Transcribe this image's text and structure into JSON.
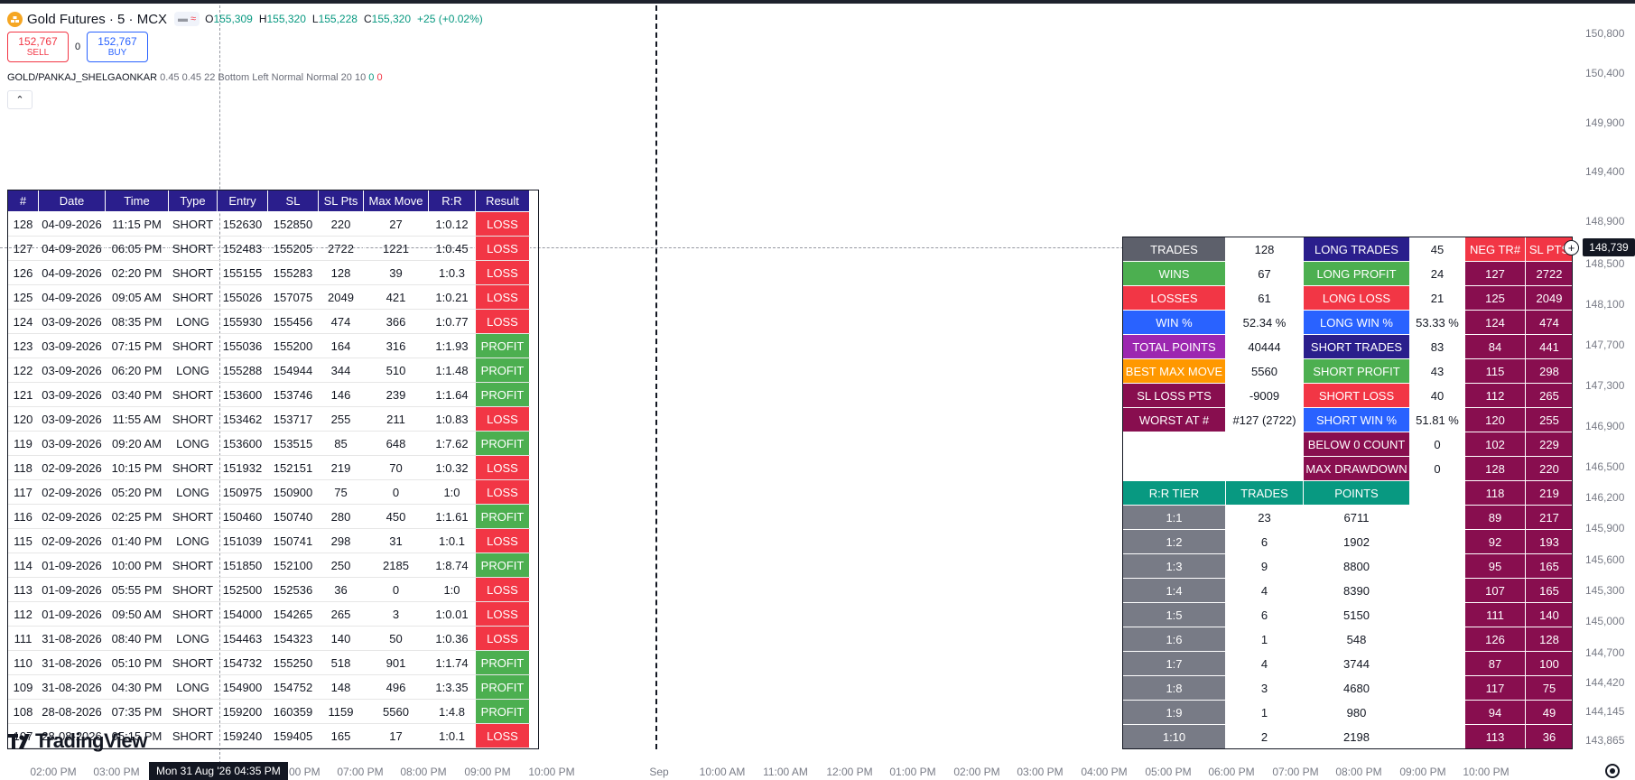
{
  "header": {
    "symbol_title": "Gold Futures · 5 · MCX",
    "badge_a": "▬",
    "badge_b": "≈",
    "ohlc": {
      "o_key": "O",
      "o": "155,309",
      "h_key": "H",
      "h": "155,320",
      "l_key": "L",
      "l": "155,228",
      "c_key": "C",
      "c": "155,320",
      "change": "+25 (+0.02%)"
    },
    "sell_price": "152,767",
    "sell_label": "SELL",
    "spread": "0",
    "buy_price": "152,767",
    "buy_label": "BUY",
    "indicator_name": "GOLD/PANKAJ_SHELGAONKAR",
    "indicator_args": "0.45 0.45 22 Bottom Left Normal Normal 20 10",
    "indicator_v0": "0",
    "indicator_v1": "0",
    "collapse_glyph": "⌃"
  },
  "price_axis": {
    "labels": [
      "150,800",
      "150,400",
      "149,900",
      "149,400",
      "148,900",
      "148,500",
      "148,100",
      "147,700",
      "147,300",
      "146,900",
      "146,500",
      "146,200",
      "145,900",
      "145,600",
      "145,300",
      "145,000",
      "144,700",
      "144,420",
      "144,145",
      "143,865"
    ],
    "current_price": "148,739"
  },
  "time_axis": {
    "labels": [
      "02:00 PM",
      "03:00 PM",
      "Mon 31 Aug '26",
      "06:00 PM",
      "07:00 PM",
      "08:00 PM",
      "09:00 PM",
      "10:00 PM",
      "Sep",
      "10:00 AM",
      "11:00 AM",
      "12:00 PM",
      "01:00 PM",
      "02:00 PM",
      "03:00 PM",
      "04:00 PM",
      "05:00 PM",
      "06:00 PM",
      "07:00 PM",
      "08:00 PM",
      "09:00 PM",
      "10:00 PM"
    ],
    "cursor_label": "Mon 31 Aug '26   04:35 PM"
  },
  "watermark": "TradingView",
  "trades": {
    "headers": [
      "#",
      "Date",
      "Time",
      "Type",
      "Entry",
      "SL",
      "SL Pts",
      "Max Move",
      "R:R",
      "Result"
    ],
    "rows": [
      [
        "128",
        "04-09-2026",
        "11:15 PM",
        "SHORT",
        "152630",
        "152850",
        "220",
        "27",
        "1:0.12",
        "LOSS"
      ],
      [
        "127",
        "04-09-2026",
        "06:05 PM",
        "SHORT",
        "152483",
        "155205",
        "2722",
        "1221",
        "1:0.45",
        "LOSS"
      ],
      [
        "126",
        "04-09-2026",
        "02:20 PM",
        "SHORT",
        "155155",
        "155283",
        "128",
        "39",
        "1:0.3",
        "LOSS"
      ],
      [
        "125",
        "04-09-2026",
        "09:05 AM",
        "SHORT",
        "155026",
        "157075",
        "2049",
        "421",
        "1:0.21",
        "LOSS"
      ],
      [
        "124",
        "03-09-2026",
        "08:35 PM",
        "LONG",
        "155930",
        "155456",
        "474",
        "366",
        "1:0.77",
        "LOSS"
      ],
      [
        "123",
        "03-09-2026",
        "07:15 PM",
        "SHORT",
        "155036",
        "155200",
        "164",
        "316",
        "1:1.93",
        "PROFIT"
      ],
      [
        "122",
        "03-09-2026",
        "06:20 PM",
        "LONG",
        "155288",
        "154944",
        "344",
        "510",
        "1:1.48",
        "PROFIT"
      ],
      [
        "121",
        "03-09-2026",
        "03:40 PM",
        "SHORT",
        "153600",
        "153746",
        "146",
        "239",
        "1:1.64",
        "PROFIT"
      ],
      [
        "120",
        "03-09-2026",
        "11:55 AM",
        "SHORT",
        "153462",
        "153717",
        "255",
        "211",
        "1:0.83",
        "LOSS"
      ],
      [
        "119",
        "03-09-2026",
        "09:20 AM",
        "LONG",
        "153600",
        "153515",
        "85",
        "648",
        "1:7.62",
        "PROFIT"
      ],
      [
        "118",
        "02-09-2026",
        "10:15 PM",
        "SHORT",
        "151932",
        "152151",
        "219",
        "70",
        "1:0.32",
        "LOSS"
      ],
      [
        "117",
        "02-09-2026",
        "05:20 PM",
        "LONG",
        "150975",
        "150900",
        "75",
        "0",
        "1:0",
        "LOSS"
      ],
      [
        "116",
        "02-09-2026",
        "02:25 PM",
        "SHORT",
        "150460",
        "150740",
        "280",
        "450",
        "1:1.61",
        "PROFIT"
      ],
      [
        "115",
        "02-09-2026",
        "01:40 PM",
        "LONG",
        "151039",
        "150741",
        "298",
        "31",
        "1:0.1",
        "LOSS"
      ],
      [
        "114",
        "01-09-2026",
        "10:00 PM",
        "SHORT",
        "151850",
        "152100",
        "250",
        "2185",
        "1:8.74",
        "PROFIT"
      ],
      [
        "113",
        "01-09-2026",
        "05:55 PM",
        "SHORT",
        "152500",
        "152536",
        "36",
        "0",
        "1:0",
        "LOSS"
      ],
      [
        "112",
        "01-09-2026",
        "09:50 AM",
        "SHORT",
        "154000",
        "154265",
        "265",
        "3",
        "1:0.01",
        "LOSS"
      ],
      [
        "111",
        "31-08-2026",
        "08:40 PM",
        "LONG",
        "154463",
        "154323",
        "140",
        "50",
        "1:0.36",
        "LOSS"
      ],
      [
        "110",
        "31-08-2026",
        "05:10 PM",
        "SHORT",
        "154732",
        "155250",
        "518",
        "901",
        "1:1.74",
        "PROFIT"
      ],
      [
        "109",
        "31-08-2026",
        "04:30 PM",
        "LONG",
        "154900",
        "154752",
        "148",
        "496",
        "1:3.35",
        "PROFIT"
      ],
      [
        "108",
        "28-08-2026",
        "07:35 PM",
        "SHORT",
        "159200",
        "160359",
        "1159",
        "5560",
        "1:4.8",
        "PROFIT"
      ],
      [
        "107",
        "28-08-2026",
        "05:15 PM",
        "SHORT",
        "159240",
        "159405",
        "165",
        "17",
        "1:0.1",
        "LOSS"
      ]
    ]
  },
  "stats": {
    "rows": [
      {
        "l1": "TRADES",
        "c1": "#5d606b",
        "v1": "128",
        "l2": "LONG TRADES",
        "c2": "#2a1e8c",
        "v2": "45",
        "neg": "NEG TR#",
        "sl": "SL PTS",
        "hdr": true
      },
      {
        "l1": "WINS",
        "c1": "#4caf50",
        "v1": "67",
        "l2": "LONG PROFIT",
        "c2": "#4caf50",
        "v2": "24",
        "neg": "127",
        "sl": "2722"
      },
      {
        "l1": "LOSSES",
        "c1": "#f23645",
        "v1": "61",
        "l2": "LONG LOSS",
        "c2": "#f23645",
        "v2": "21",
        "neg": "125",
        "sl": "2049"
      },
      {
        "l1": "WIN %",
        "c1": "#2962ff",
        "v1": "52.34 %",
        "l2": "LONG WIN %",
        "c2": "#2962ff",
        "v2": "53.33 %",
        "neg": "124",
        "sl": "474"
      },
      {
        "l1": "TOTAL POINTS",
        "c1": "#9c27b0",
        "v1": "40444",
        "l2": "SHORT TRADES",
        "c2": "#2a1e8c",
        "v2": "83",
        "neg": "84",
        "sl": "441"
      },
      {
        "l1": "BEST MAX MOVE",
        "c1": "#ff9800",
        "v1": "5560",
        "l2": "SHORT PROFIT",
        "c2": "#4caf50",
        "v2": "43",
        "neg": "115",
        "sl": "298"
      },
      {
        "l1": "SL LOSS PTS",
        "c1": "#880e4f",
        "v1": "-9009",
        "l2": "SHORT LOSS",
        "c2": "#f23645",
        "v2": "40",
        "neg": "112",
        "sl": "265"
      },
      {
        "l1": "WORST AT #",
        "c1": "#880e4f",
        "v1": "#127 (2722)",
        "l2": "SHORT WIN %",
        "c2": "#2962ff",
        "v2": "51.81 %",
        "neg": "120",
        "sl": "255"
      },
      {
        "l1": "",
        "c1": "",
        "v1": "",
        "l2": "BELOW 0 COUNT",
        "c2": "#880e4f",
        "v2": "0",
        "neg": "102",
        "sl": "229"
      },
      {
        "l1": "",
        "c1": "",
        "v1": "",
        "l2": "MAX DRAWDOWN",
        "c2": "#880e4f",
        "v2": "0",
        "neg": "128",
        "sl": "220"
      }
    ],
    "tier_headers": [
      "R:R TIER",
      "TRADES",
      "POINTS"
    ],
    "tier_rows": [
      {
        "tier": "1:1",
        "trades": "23",
        "points": "6711",
        "neg": "118",
        "sl": "219"
      },
      {
        "tier": "1:1",
        "trades": "23",
        "points": "6711",
        "neg": "89",
        "sl": "217"
      },
      {
        "tier": "1:2",
        "trades": "6",
        "points": "1902",
        "neg": "92",
        "sl": "193"
      },
      {
        "tier": "1:3",
        "trades": "9",
        "points": "8800",
        "neg": "95",
        "sl": "165"
      },
      {
        "tier": "1:4",
        "trades": "4",
        "points": "8390",
        "neg": "107",
        "sl": "165"
      },
      {
        "tier": "1:5",
        "trades": "6",
        "points": "5150",
        "neg": "111",
        "sl": "140"
      },
      {
        "tier": "1:6",
        "trades": "1",
        "points": "548",
        "neg": "126",
        "sl": "128"
      },
      {
        "tier": "1:7",
        "trades": "4",
        "points": "3744",
        "neg": "87",
        "sl": "100"
      },
      {
        "tier": "1:8",
        "trades": "3",
        "points": "4680",
        "neg": "117",
        "sl": "75"
      },
      {
        "tier": "1:9",
        "trades": "1",
        "points": "980",
        "neg": "94",
        "sl": "49"
      },
      {
        "tier": "1:10",
        "trades": "2",
        "points": "2198",
        "neg": "113",
        "sl": "36"
      }
    ]
  }
}
